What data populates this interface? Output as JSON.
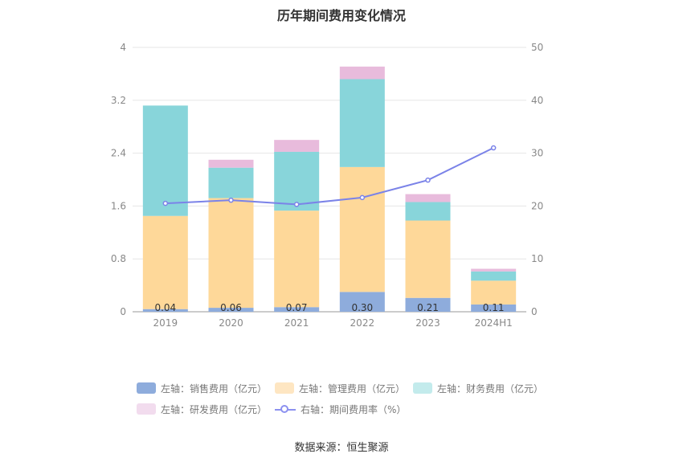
{
  "title": "历年期间费用变化情况",
  "source": "数据来源：恒生聚源",
  "colors": {
    "sales": "#8eacdc",
    "management": "#fed899",
    "finance": "#88d5da",
    "rd": "#e8bbdc",
    "rate": "#7b83e8"
  },
  "legend": [
    {
      "label": "左轴：销售费用（亿元）",
      "color": "#8eacdc"
    },
    {
      "label": "左轴：管理费用（亿元）",
      "color": "#fee6c2"
    },
    {
      "label": "左轴：财务费用（亿元）",
      "color": "#c3ebec"
    },
    {
      "label": "左轴：研发费用（亿元）",
      "color": "#f2dcee"
    },
    {
      "label": "右轴：期间费用率（%）",
      "color": "#8c91f0"
    }
  ],
  "chart_data": {
    "type": "bar",
    "stacked": true,
    "categories": [
      "2019",
      "2020",
      "2021",
      "2022",
      "2023",
      "2024H1"
    ],
    "series": [
      {
        "name": "左轴：销售费用（亿元）",
        "axis": "left",
        "values": [
          0.04,
          0.06,
          0.07,
          0.3,
          0.21,
          0.11
        ],
        "labels": [
          "0.04",
          "0.06",
          "0.07",
          "0.30",
          "0.21",
          "0.11"
        ]
      },
      {
        "name": "左轴：管理费用（亿元）",
        "axis": "left",
        "values": [
          1.41,
          1.66,
          1.46,
          1.89,
          1.17,
          0.36
        ]
      },
      {
        "name": "左轴：财务费用（亿元）",
        "axis": "left",
        "values": [
          1.67,
          0.46,
          0.89,
          1.33,
          0.28,
          0.14
        ]
      },
      {
        "name": "左轴：研发费用（亿元）",
        "axis": "left",
        "values": [
          0.0,
          0.12,
          0.18,
          0.19,
          0.12,
          0.04
        ]
      },
      {
        "name": "右轴：期间费用率（%）",
        "axis": "right",
        "type": "line",
        "values": [
          20.5,
          21.1,
          20.3,
          21.6,
          24.9,
          31.0
        ]
      }
    ],
    "left_axis": {
      "min": 0,
      "max": 4,
      "ticks": [
        "0",
        "0.8",
        "1.6",
        "2.4",
        "3.2",
        "4"
      ]
    },
    "right_axis": {
      "min": 0,
      "max": 50,
      "ticks": [
        "0",
        "10",
        "20",
        "30",
        "40",
        "50"
      ]
    },
    "grid": true,
    "legend_position": "bottom"
  }
}
